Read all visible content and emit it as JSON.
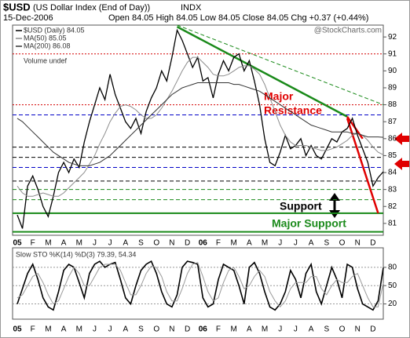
{
  "header": {
    "symbol": "$USD",
    "name": "(US Dollar Index (End of Day))",
    "exchange": "INDX",
    "date": "15-Dec-2006",
    "ohlc": "Open 84.05  High 84.05  Low 84.05  Close 84.05  Chg +0.37 (+0.44%)",
    "credit": "@StockCharts.com",
    "volume_note": "Volume undef"
  },
  "annotations": [
    "Major",
    "Resistance",
    "Support",
    "Major Support"
  ],
  "chart_data": [
    {
      "type": "line",
      "categories": [
        "05",
        null,
        null,
        "F",
        null,
        null,
        "M",
        null,
        null,
        "A",
        null,
        null,
        "M",
        null,
        null,
        "J",
        null,
        null,
        "J",
        null,
        null,
        "A",
        null,
        null,
        "S",
        null,
        null,
        "O",
        null,
        null,
        "N",
        null,
        null,
        "D",
        null,
        null,
        "06",
        null,
        null,
        "F",
        null,
        null,
        "M",
        null,
        null,
        "A",
        null,
        null,
        "M",
        null,
        null,
        "J",
        null,
        null,
        "J",
        null,
        null,
        "A",
        null,
        null,
        "S",
        null,
        null,
        "O",
        null,
        null,
        "N",
        null,
        null,
        "D",
        null,
        null
      ],
      "series": [
        {
          "name": "$USD (Daily) 84.05",
          "color": "#000000",
          "width": 1.3,
          "values": [
            81.5,
            80.7,
            83.2,
            83.8,
            83.0,
            82.0,
            81.4,
            82.6,
            84.0,
            84.6,
            84.0,
            84.8,
            84.3,
            85.8,
            87.0,
            88.0,
            89.0,
            88.3,
            89.8,
            88.6,
            87.8,
            87.0,
            86.6,
            87.2,
            86.3,
            87.6,
            88.4,
            89.0,
            90.0,
            89.4,
            90.8,
            92.4,
            91.8,
            91.0,
            90.2,
            90.8,
            89.4,
            89.6,
            88.4,
            89.8,
            90.6,
            90.0,
            90.8,
            91.0,
            90.0,
            90.6,
            89.4,
            88.0,
            86.0,
            84.6,
            84.4,
            85.2,
            86.2,
            85.4,
            85.6,
            86.0,
            85.0,
            85.6,
            85.0,
            84.8,
            85.4,
            86.0,
            85.8,
            86.4,
            86.6,
            87.2,
            86.2,
            85.4,
            84.6,
            83.2,
            83.7,
            84.05
          ]
        },
        {
          "name": "MA(50) 85.05",
          "color": "#8c8c8c",
          "width": 1,
          "values": [
            83.2,
            82.8,
            82.6,
            82.6,
            82.7,
            82.8,
            82.7,
            82.6,
            82.6,
            82.8,
            83.1,
            83.4,
            83.7,
            84.0,
            84.5,
            85.0,
            85.7,
            86.3,
            87.0,
            87.5,
            87.9,
            88.0,
            87.9,
            87.7,
            87.4,
            87.2,
            87.2,
            87.4,
            87.8,
            88.3,
            88.8,
            89.4,
            90.0,
            90.5,
            90.8,
            90.8,
            90.5,
            90.2,
            89.8,
            89.7,
            89.7,
            89.8,
            90.0,
            90.2,
            90.3,
            90.3,
            90.1,
            89.8,
            89.2,
            88.4,
            87.6,
            86.8,
            86.2,
            85.8,
            85.6,
            85.6,
            85.6,
            85.5,
            85.4,
            85.3,
            85.3,
            85.4,
            85.5,
            85.7,
            85.9,
            86.2,
            86.3,
            86.2,
            85.9,
            85.5,
            85.2,
            85.05
          ]
        },
        {
          "name": "MA(200) 86.08",
          "color": "#333333",
          "width": 1,
          "values": [
            87.2,
            87.0,
            86.7,
            86.4,
            86.1,
            85.8,
            85.5,
            85.2,
            85.0,
            84.8,
            84.6,
            84.5,
            84.4,
            84.4,
            84.4,
            84.5,
            84.6,
            84.8,
            85.0,
            85.3,
            85.6,
            85.9,
            86.2,
            86.5,
            86.8,
            87.1,
            87.4,
            87.7,
            88.0,
            88.3,
            88.6,
            88.8,
            89.0,
            89.1,
            89.2,
            89.3,
            89.3,
            89.3,
            89.3,
            89.3,
            89.3,
            89.3,
            89.2,
            89.2,
            89.1,
            89.0,
            88.9,
            88.8,
            88.6,
            88.4,
            88.2,
            88.0,
            87.8,
            87.6,
            87.4,
            87.2,
            87.0,
            86.8,
            86.7,
            86.6,
            86.5,
            86.4,
            86.4,
            86.4,
            86.4,
            86.3,
            86.3,
            86.2,
            86.1,
            86.1,
            86.1,
            86.08
          ]
        }
      ],
      "levels": [
        {
          "value": 91.0,
          "color": "#d40000",
          "style": "dotted"
        },
        {
          "value": 88.0,
          "color": "#d40000",
          "style": "dotted"
        },
        {
          "value": 87.4,
          "color": "#0000c8",
          "style": "dashed"
        },
        {
          "value": 85.5,
          "color": "#000000",
          "style": "dashed"
        },
        {
          "value": 84.9,
          "color": "#000000",
          "style": "dashed"
        },
        {
          "value": 84.3,
          "color": "#0000c8",
          "style": "dashed"
        },
        {
          "value": 83.5,
          "color": "#000000",
          "style": "dashed"
        },
        {
          "value": 83.0,
          "color": "#1a8a1a",
          "style": "dashed"
        },
        {
          "value": 82.4,
          "color": "#1a8a1a",
          "style": "dashed"
        },
        {
          "value": 81.6,
          "color": "#1a8a1a",
          "style": "solid"
        },
        {
          "value": 80.5,
          "color": "#1a8a1a",
          "style": "solid"
        }
      ],
      "trendlines": [
        {
          "from": [
            31,
            92.6
          ],
          "to": [
            64,
            87.3
          ],
          "color": "#1a8a1a",
          "style": "solid"
        },
        {
          "from": [
            31,
            92.7
          ],
          "to": [
            71,
            88.0
          ],
          "color": "#1a8a1a",
          "style": "dashed"
        },
        {
          "from": [
            64,
            87.2
          ],
          "to": [
            70,
            81.6
          ],
          "color": "#e00000",
          "style": "solid"
        },
        {
          "from": [
            64,
            87.3
          ],
          "to": [
            67,
            86.0
          ],
          "color": "#e00000",
          "style": "solid"
        }
      ],
      "ylim": [
        80.3,
        92.7
      ],
      "yticks": [
        81,
        82,
        83,
        84,
        85,
        86,
        87,
        88,
        89,
        90,
        91,
        92
      ]
    },
    {
      "type": "line",
      "title": "Slow STO %K(14) %D(3) 79.39, 54.34",
      "series": [
        {
          "color": "#000000",
          "width": 1.6,
          "values": [
            20,
            45,
            70,
            85,
            60,
            30,
            15,
            10,
            40,
            75,
            85,
            80,
            55,
            30,
            70,
            85,
            90,
            80,
            85,
            88,
            60,
            30,
            20,
            50,
            75,
            85,
            90,
            70,
            40,
            20,
            15,
            35,
            80,
            90,
            88,
            85,
            30,
            15,
            20,
            60,
            85,
            80,
            75,
            50,
            20,
            80,
            88,
            70,
            40,
            15,
            10,
            20,
            40,
            75,
            60,
            30,
            70,
            85,
            40,
            20,
            50,
            80,
            60,
            30,
            85,
            80,
            45,
            20,
            15,
            10,
            25,
            79.39
          ]
        },
        {
          "color": "#9a9a9a",
          "width": 1,
          "values": [
            30,
            35,
            50,
            65,
            70,
            55,
            35,
            20,
            25,
            45,
            65,
            80,
            70,
            50,
            50,
            65,
            80,
            85,
            85,
            85,
            75,
            55,
            35,
            35,
            50,
            70,
            82,
            80,
            65,
            40,
            25,
            25,
            45,
            70,
            85,
            88,
            65,
            40,
            25,
            30,
            55,
            75,
            80,
            65,
            45,
            50,
            65,
            75,
            65,
            40,
            25,
            15,
            25,
            45,
            55,
            55,
            55,
            65,
            65,
            45,
            35,
            50,
            60,
            55,
            55,
            65,
            70,
            50,
            30,
            15,
            15,
            54.34
          ]
        }
      ],
      "ylim": [
        -5,
        112
      ],
      "yticks": [
        20,
        50,
        80
      ],
      "grid": true
    }
  ]
}
